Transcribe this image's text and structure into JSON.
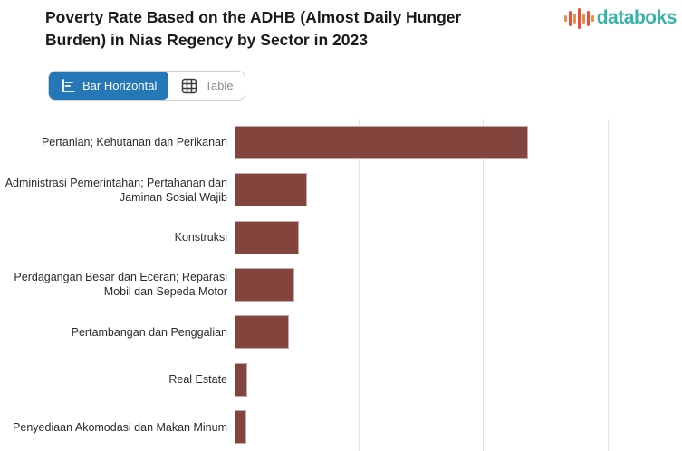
{
  "header": {
    "title": "Poverty Rate Based on the ADHB (Almost Daily Hunger Burden) in Nias Regency by Sector in 2023"
  },
  "brand": {
    "name": "databoks",
    "text_color": "#34b3a7",
    "icon_bar_colors": [
      "#f0894b",
      "#e8503a"
    ]
  },
  "toolbar": {
    "tabs": [
      {
        "label": "Bar Horizontal",
        "icon": "bar-horizontal-icon",
        "active": true
      },
      {
        "label": "Table",
        "icon": "table-icon",
        "active": false
      }
    ],
    "active_color": "#2577b8",
    "inactive_text_color": "#8c8c8c"
  },
  "chart_data": {
    "type": "bar",
    "orientation": "horizontal",
    "title": "Poverty Rate Based on the ADHB (Almost Daily Hunger Burden) in Nias Regency by Sector in 2023",
    "categories": [
      "Pertanian; Kehutanan dan Perikanan",
      "Administrasi Pemerintahan; Pertahanan dan Jaminan Sosial Wajib",
      "Konstruksi",
      "Perdagangan Besar dan Eceran; Reparasi Mobil dan Sepeda Motor",
      "Pertambangan dan Penggalian",
      "Real Estate",
      "Penyediaan Akomodasi dan Makan Minum"
    ],
    "values": [
      2.36,
      0.58,
      0.52,
      0.48,
      0.44,
      0.102,
      0.095
    ],
    "value_unit": "gridline-intervals (x-axis tick labels are cropped out of view in the screenshot)",
    "xlim": [
      0,
      3.6
    ],
    "gridline_positions": [
      0,
      1,
      2,
      3
    ],
    "bar_color": "#82443c",
    "grid": true,
    "legend": false,
    "xlabel": "",
    "ylabel": ""
  }
}
